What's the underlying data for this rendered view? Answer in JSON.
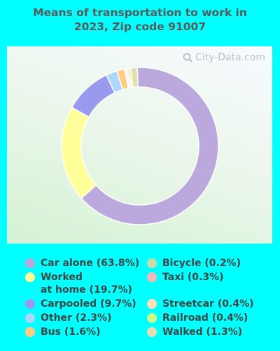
{
  "chart_data": {
    "type": "pie",
    "title": "Means of transportation to work in 2023, Zip code 91007",
    "categories": [
      "Car alone",
      "Worked at home",
      "Carpooled",
      "Other",
      "Bus",
      "Bicycle",
      "Taxi",
      "Streetcar",
      "Railroad",
      "Walked"
    ],
    "values": [
      63.8,
      19.7,
      9.7,
      2.3,
      1.6,
      0.2,
      0.3,
      0.4,
      0.4,
      1.3
    ],
    "colors": [
      "#bba8dc",
      "#ffff99",
      "#9999ee",
      "#aad8ff",
      "#ffcc80",
      "#c8dcaa",
      "#f4b8b8",
      "#fde0b8",
      "#ccff88",
      "#e4ddb4"
    ],
    "legend": [
      {
        "label": "Car alone (63.8%)",
        "color": "#bba8dc"
      },
      {
        "label": "Worked\nat home (19.7%)",
        "color": "#ffff99"
      },
      {
        "label": "Carpooled (9.7%)",
        "color": "#9999ee"
      },
      {
        "label": "Other (2.3%)",
        "color": "#aad8ff"
      },
      {
        "label": "Bus (1.6%)",
        "color": "#ffcc80"
      },
      {
        "label": "Bicycle (0.2%)",
        "color": "#c8dcaa"
      },
      {
        "label": "Taxi (0.3%)",
        "color": "#f4b8b8"
      },
      {
        "label": "Streetcar (0.4%)",
        "color": "#fde0b8"
      },
      {
        "label": "Railroad (0.4%)",
        "color": "#ccff88"
      },
      {
        "label": "Walked (1.3%)",
        "color": "#e4ddb4"
      }
    ],
    "legend_placement": "bottom"
  },
  "watermark": "City-Data.com",
  "watermark_icon": "magnifier-icon"
}
